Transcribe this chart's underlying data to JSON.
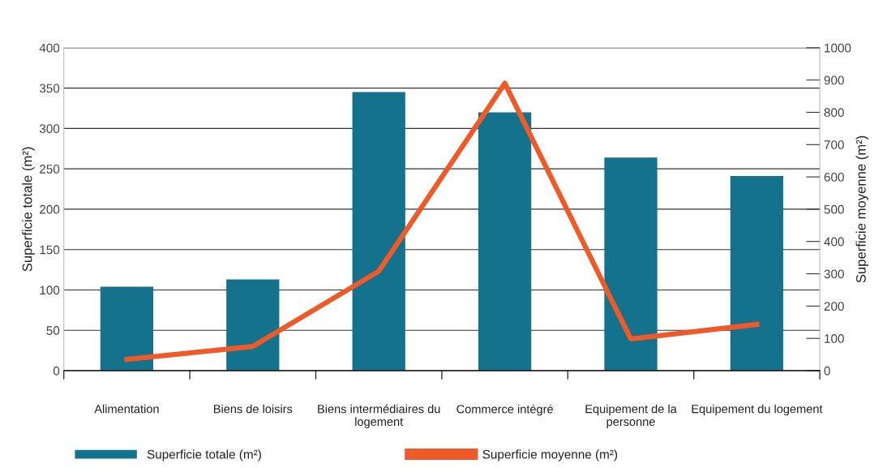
{
  "chart_data": {
    "type": "bar",
    "categories": [
      "Alimentation",
      "Biens de loisirs",
      "Biens intermédiaires du logement",
      "Commerce intégré",
      "Equipement de la personne",
      "Equipement du logement"
    ],
    "ylabel": "Superficie totale (m²)",
    "y2label": "Superficie moyenne (m²)",
    "series": [
      {
        "name": "Superficie totale (m²)",
        "color": "#14728d",
        "values": [
          104,
          113,
          345,
          320,
          264,
          241
        ]
      },
      {
        "name": "Superficie moyenne (m²)",
        "type": "line",
        "axis": "y2",
        "color": "#ef5a28",
        "values": [
          35,
          75,
          308,
          890,
          98,
          143
        ]
      }
    ],
    "ylim": [
      0,
      400
    ],
    "yticks": [
      0,
      50,
      100,
      150,
      200,
      250,
      300,
      350,
      400
    ],
    "y2lim": [
      0,
      1000
    ],
    "y2ticks": [
      0,
      100,
      200,
      300,
      400,
      500,
      600,
      700,
      800,
      900,
      1000
    ],
    "grid": "y",
    "legend": "bottom",
    "marker": "none",
    "line_style": "solid"
  }
}
